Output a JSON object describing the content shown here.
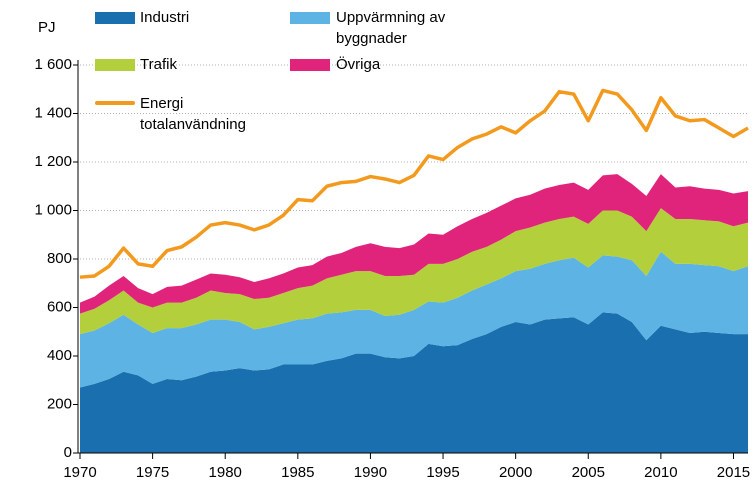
{
  "chart_data": {
    "type": "area",
    "unit_label": "PJ",
    "x": [
      1970,
      1971,
      1972,
      1973,
      1974,
      1975,
      1976,
      1977,
      1978,
      1979,
      1980,
      1981,
      1982,
      1983,
      1984,
      1985,
      1986,
      1987,
      1988,
      1989,
      1990,
      1991,
      1992,
      1993,
      1994,
      1995,
      1996,
      1997,
      1998,
      1999,
      2000,
      2001,
      2002,
      2003,
      2004,
      2005,
      2006,
      2007,
      2008,
      2009,
      2010,
      2011,
      2012,
      2013,
      2014,
      2015,
      2016
    ],
    "series": [
      {
        "name": "Industri",
        "color": "#1a6fae",
        "values": [
          270,
          285,
          305,
          335,
          320,
          285,
          305,
          300,
          315,
          335,
          340,
          350,
          340,
          345,
          365,
          365,
          365,
          380,
          390,
          410,
          410,
          395,
          390,
          400,
          450,
          440,
          445,
          470,
          490,
          520,
          540,
          530,
          550,
          555,
          560,
          530,
          580,
          575,
          540,
          465,
          525,
          510,
          495,
          500,
          495,
          490,
          490
        ]
      },
      {
        "name": "Uppvärmning av byggnader",
        "color": "#5cb3e4",
        "values": [
          220,
          220,
          230,
          235,
          210,
          210,
          210,
          215,
          215,
          215,
          210,
          190,
          170,
          175,
          170,
          185,
          190,
          195,
          190,
          180,
          180,
          170,
          180,
          190,
          175,
          180,
          195,
          200,
          205,
          200,
          210,
          230,
          230,
          240,
          245,
          235,
          235,
          235,
          255,
          265,
          305,
          270,
          285,
          275,
          275,
          260,
          280
        ]
      },
      {
        "name": "Trafik",
        "color": "#b3cf3b",
        "values": [
          85,
          90,
          95,
          100,
          90,
          105,
          105,
          105,
          110,
          120,
          110,
          115,
          125,
          120,
          125,
          130,
          135,
          145,
          155,
          160,
          160,
          165,
          160,
          145,
          155,
          160,
          160,
          160,
          155,
          160,
          165,
          170,
          170,
          170,
          170,
          180,
          185,
          190,
          180,
          185,
          180,
          185,
          185,
          185,
          185,
          185,
          180
        ]
      },
      {
        "name": "Övriga",
        "color": "#e0237b",
        "values": [
          45,
          50,
          60,
          60,
          60,
          55,
          65,
          70,
          75,
          70,
          75,
          70,
          70,
          80,
          80,
          85,
          85,
          90,
          90,
          100,
          115,
          120,
          115,
          125,
          125,
          120,
          135,
          135,
          140,
          140,
          135,
          135,
          140,
          140,
          140,
          140,
          145,
          150,
          135,
          145,
          140,
          130,
          135,
          130,
          130,
          135,
          130
        ]
      },
      {
        "name": "Energi totalanvändning",
        "color": "#f39a1e",
        "type": "line",
        "values": [
          725,
          730,
          770,
          845,
          780,
          770,
          835,
          850,
          890,
          940,
          950,
          940,
          920,
          940,
          980,
          1045,
          1040,
          1100,
          1115,
          1120,
          1140,
          1130,
          1115,
          1145,
          1225,
          1210,
          1260,
          1295,
          1315,
          1345,
          1320,
          1370,
          1410,
          1490,
          1480,
          1370,
          1495,
          1480,
          1415,
          1330,
          1465,
          1390,
          1370,
          1375,
          1340,
          1305,
          1340
        ]
      }
    ],
    "xlim": [
      1970,
      2016
    ],
    "xticks": [
      1970,
      1975,
      1980,
      1985,
      1990,
      1995,
      2000,
      2005,
      2010,
      2015
    ],
    "ylim": [
      0,
      1600
    ],
    "yticks": [
      0,
      200,
      400,
      600,
      800,
      {
        "value": 1000,
        "label": "1 000"
      },
      {
        "value": 1200,
        "label": "1 200"
      },
      {
        "value": 1400,
        "label": "1 400"
      },
      {
        "value": 1600,
        "label": "1 600"
      }
    ],
    "grid": true
  }
}
